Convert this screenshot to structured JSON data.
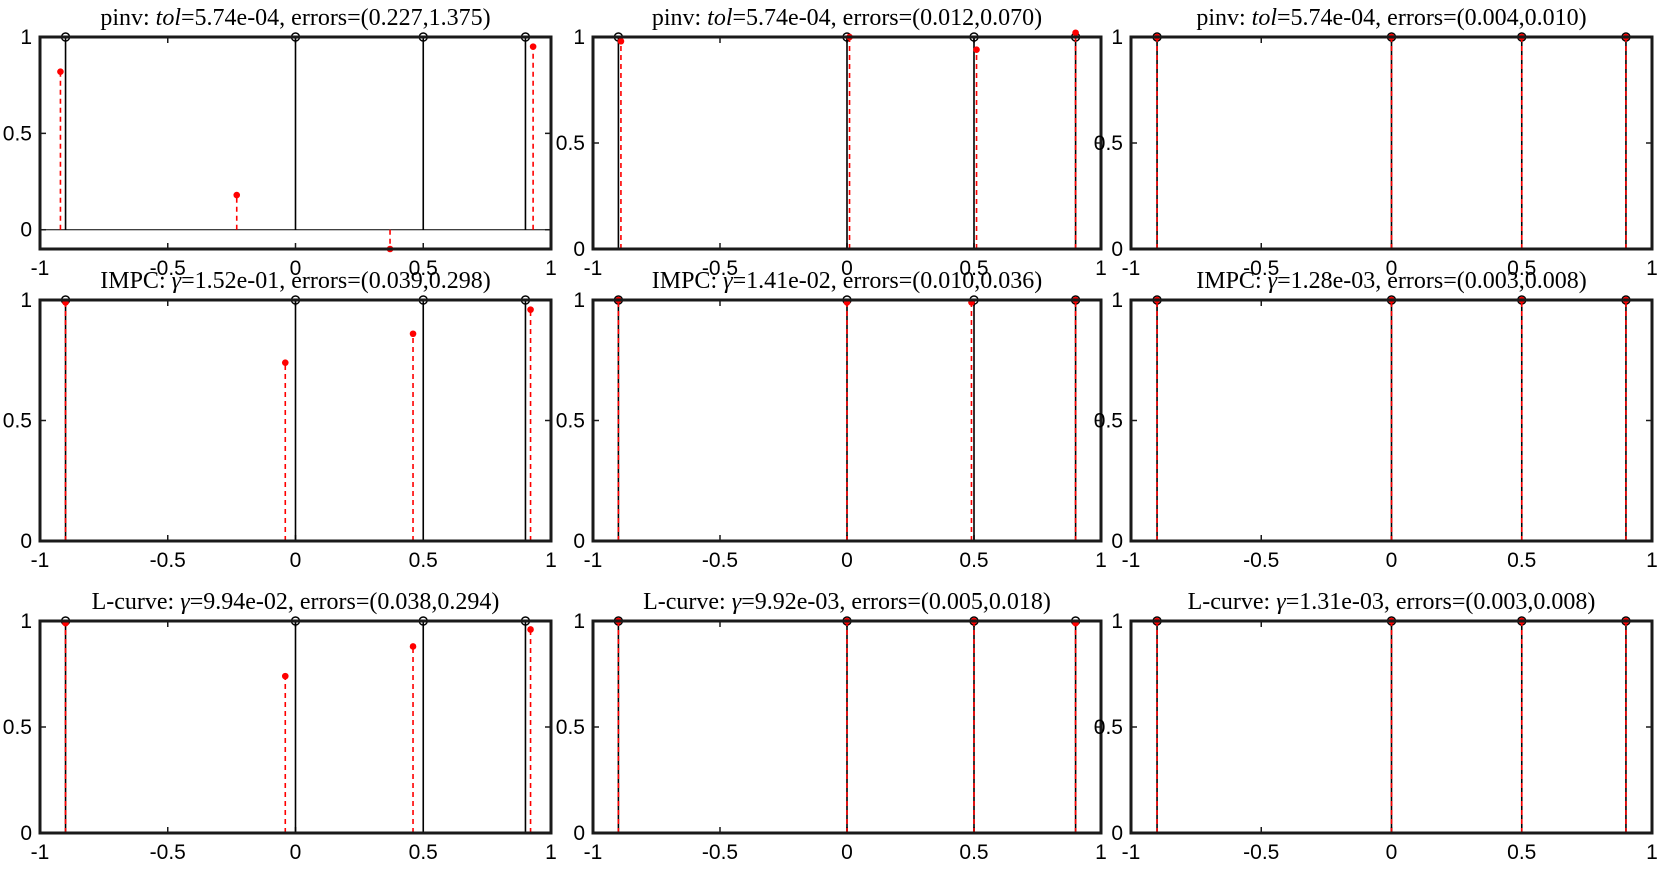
{
  "chart_data": [
    {
      "type": "scatter",
      "title_parts": [
        "pinv:  ",
        "tol",
        "=5.74e-04, errors=(0.227,1.375)"
      ],
      "xlim": [
        -1,
        1
      ],
      "ylim": [
        -0.1,
        1
      ],
      "xticks": [
        -1,
        -0.5,
        0,
        0.5,
        1
      ],
      "xtick_labels": [
        "-1",
        "-0.5",
        "0",
        "0.5",
        "1"
      ],
      "yticks": [
        0,
        0.5,
        1
      ],
      "ytick_labels": [
        "0",
        "0.5",
        "1"
      ],
      "series": [
        {
          "style": "solid-black-open-circle",
          "x": [
            -0.9,
            0,
            0.5,
            0.9
          ],
          "y": [
            1,
            1,
            1,
            1
          ]
        },
        {
          "style": "dashed-red-filled-dot",
          "x": [
            -0.92,
            -0.23,
            0.37,
            0.93
          ],
          "y": [
            0.82,
            0.18,
            -0.1,
            0.95
          ]
        }
      ]
    },
    {
      "type": "scatter",
      "title_parts": [
        "pinv:  ",
        "tol",
        "=5.74e-04, errors=(0.012,0.070)"
      ],
      "xlim": [
        -1,
        1
      ],
      "ylim": [
        0,
        1
      ],
      "xticks": [
        -1,
        -0.5,
        0,
        0.5,
        1
      ],
      "xtick_labels": [
        "-1",
        "-0.5",
        "0",
        "0.5",
        "1"
      ],
      "yticks": [
        0,
        0.5,
        1
      ],
      "ytick_labels": [
        "0",
        "0.5",
        "1"
      ],
      "series": [
        {
          "style": "solid-black-open-circle",
          "x": [
            -0.9,
            0,
            0.5,
            0.9
          ],
          "y": [
            1,
            1,
            1,
            1
          ]
        },
        {
          "style": "dashed-red-filled-dot",
          "x": [
            -0.89,
            0.01,
            0.51,
            0.9
          ],
          "y": [
            0.98,
            1.0,
            0.94,
            1.02
          ]
        }
      ]
    },
    {
      "type": "scatter",
      "title_parts": [
        "pinv:  ",
        "tol",
        "=5.74e-04, errors=(0.004,0.010)"
      ],
      "xlim": [
        -1,
        1
      ],
      "ylim": [
        0,
        1
      ],
      "xticks": [
        -1,
        -0.5,
        0,
        0.5,
        1
      ],
      "xtick_labels": [
        "-1",
        "-0.5",
        "0",
        "0.5",
        "1"
      ],
      "yticks": [
        0,
        0.5,
        1
      ],
      "ytick_labels": [
        "0",
        "0.5",
        "1"
      ],
      "series": [
        {
          "style": "solid-black-open-circle",
          "x": [
            -0.9,
            0,
            0.5,
            0.9
          ],
          "y": [
            1,
            1,
            1,
            1
          ]
        },
        {
          "style": "dashed-red-filled-dot",
          "x": [
            -0.9,
            0,
            0.5,
            0.9
          ],
          "y": [
            1.0,
            1.0,
            1.0,
            1.0
          ]
        }
      ]
    },
    {
      "type": "scatter",
      "title_parts": [
        "IMPC:  ",
        "γ",
        "=1.52e-01, errors=(0.039,0.298)"
      ],
      "xlim": [
        -1,
        1
      ],
      "ylim": [
        0,
        1
      ],
      "xticks": [
        -1,
        -0.5,
        0,
        0.5,
        1
      ],
      "xtick_labels": [
        "-1",
        "-0.5",
        "0",
        "0.5",
        "1"
      ],
      "yticks": [
        0,
        0.5,
        1
      ],
      "ytick_labels": [
        "0",
        "0.5",
        "1"
      ],
      "series": [
        {
          "style": "solid-black-open-circle",
          "x": [
            -0.9,
            0,
            0.5,
            0.9
          ],
          "y": [
            1,
            1,
            1,
            1
          ]
        },
        {
          "style": "dashed-red-filled-dot",
          "x": [
            -0.9,
            -0.04,
            0.46,
            0.92
          ],
          "y": [
            0.99,
            0.74,
            0.86,
            0.96
          ]
        }
      ]
    },
    {
      "type": "scatter",
      "title_parts": [
        "IMPC:  ",
        "γ",
        "=1.41e-02, errors=(0.010,0.036)"
      ],
      "xlim": [
        -1,
        1
      ],
      "ylim": [
        0,
        1
      ],
      "xticks": [
        -1,
        -0.5,
        0,
        0.5,
        1
      ],
      "xtick_labels": [
        "-1",
        "-0.5",
        "0",
        "0.5",
        "1"
      ],
      "yticks": [
        0,
        0.5,
        1
      ],
      "ytick_labels": [
        "0",
        "0.5",
        "1"
      ],
      "series": [
        {
          "style": "solid-black-open-circle",
          "x": [
            -0.9,
            0,
            0.5,
            0.9
          ],
          "y": [
            1,
            1,
            1,
            1
          ]
        },
        {
          "style": "dashed-red-filled-dot",
          "x": [
            -0.9,
            0,
            0.49,
            0.9
          ],
          "y": [
            1.0,
            0.99,
            0.99,
            1.0
          ]
        }
      ]
    },
    {
      "type": "scatter",
      "title_parts": [
        "IMPC:  ",
        "γ",
        "=1.28e-03, errors=(0.003,0.008)"
      ],
      "xlim": [
        -1,
        1
      ],
      "ylim": [
        0,
        1
      ],
      "xticks": [
        -1,
        -0.5,
        0,
        0.5,
        1
      ],
      "xtick_labels": [
        "-1",
        "-0.5",
        "0",
        "0.5",
        "1"
      ],
      "yticks": [
        0,
        0.5,
        1
      ],
      "ytick_labels": [
        "0",
        "0.5",
        "1"
      ],
      "series": [
        {
          "style": "solid-black-open-circle",
          "x": [
            -0.9,
            0,
            0.5,
            0.9
          ],
          "y": [
            1,
            1,
            1,
            1
          ]
        },
        {
          "style": "dashed-red-filled-dot",
          "x": [
            -0.9,
            0,
            0.5,
            0.9
          ],
          "y": [
            1.0,
            1.0,
            1.0,
            1.0
          ]
        }
      ]
    },
    {
      "type": "scatter",
      "title_parts": [
        "L-curve:  ",
        "γ",
        "=9.94e-02, errors=(0.038,0.294)"
      ],
      "xlim": [
        -1,
        1
      ],
      "ylim": [
        0,
        1
      ],
      "xticks": [
        -1,
        -0.5,
        0,
        0.5,
        1
      ],
      "xtick_labels": [
        "-1",
        "-0.5",
        "0",
        "0.5",
        "1"
      ],
      "yticks": [
        0,
        0.5,
        1
      ],
      "ytick_labels": [
        "0",
        "0.5",
        "1"
      ],
      "series": [
        {
          "style": "solid-black-open-circle",
          "x": [
            -0.9,
            0,
            0.5,
            0.9
          ],
          "y": [
            1,
            1,
            1,
            1
          ]
        },
        {
          "style": "dashed-red-filled-dot",
          "x": [
            -0.9,
            -0.04,
            0.46,
            0.92
          ],
          "y": [
            0.99,
            0.74,
            0.88,
            0.96
          ]
        }
      ]
    },
    {
      "type": "scatter",
      "title_parts": [
        "L-curve:  ",
        "γ",
        "=9.92e-03, errors=(0.005,0.018)"
      ],
      "xlim": [
        -1,
        1
      ],
      "ylim": [
        0,
        1
      ],
      "xticks": [
        -1,
        -0.5,
        0,
        0.5,
        1
      ],
      "xtick_labels": [
        "-1",
        "-0.5",
        "0",
        "0.5",
        "1"
      ],
      "yticks": [
        0,
        0.5,
        1
      ],
      "ytick_labels": [
        "0",
        "0.5",
        "1"
      ],
      "series": [
        {
          "style": "solid-black-open-circle",
          "x": [
            -0.9,
            0,
            0.5,
            0.9
          ],
          "y": [
            1,
            1,
            1,
            1
          ]
        },
        {
          "style": "dashed-red-filled-dot",
          "x": [
            -0.9,
            0,
            0.5,
            0.9
          ],
          "y": [
            1.0,
            1.0,
            1.0,
            0.99
          ]
        }
      ]
    },
    {
      "type": "scatter",
      "title_parts": [
        "L-curve:  ",
        "γ",
        "=1.31e-03, errors=(0.003,0.008)"
      ],
      "xlim": [
        -1,
        1
      ],
      "ylim": [
        0,
        1
      ],
      "xticks": [
        -1,
        -0.5,
        0,
        0.5,
        1
      ],
      "xtick_labels": [
        "-1",
        "-0.5",
        "0",
        "0.5",
        "1"
      ],
      "yticks": [
        0,
        0.5,
        1
      ],
      "ytick_labels": [
        "0",
        "0.5",
        "1"
      ],
      "series": [
        {
          "style": "solid-black-open-circle",
          "x": [
            -0.9,
            0,
            0.5,
            0.9
          ],
          "y": [
            1,
            1,
            1,
            1
          ]
        },
        {
          "style": "dashed-red-filled-dot",
          "x": [
            -0.9,
            0,
            0.5,
            0.9
          ],
          "y": [
            1.0,
            1.0,
            1.0,
            1.0
          ]
        }
      ]
    }
  ],
  "colors": {
    "true_stem": "#000000",
    "estimate_stem": "#ff0000",
    "axes": "#1a1a1a"
  }
}
